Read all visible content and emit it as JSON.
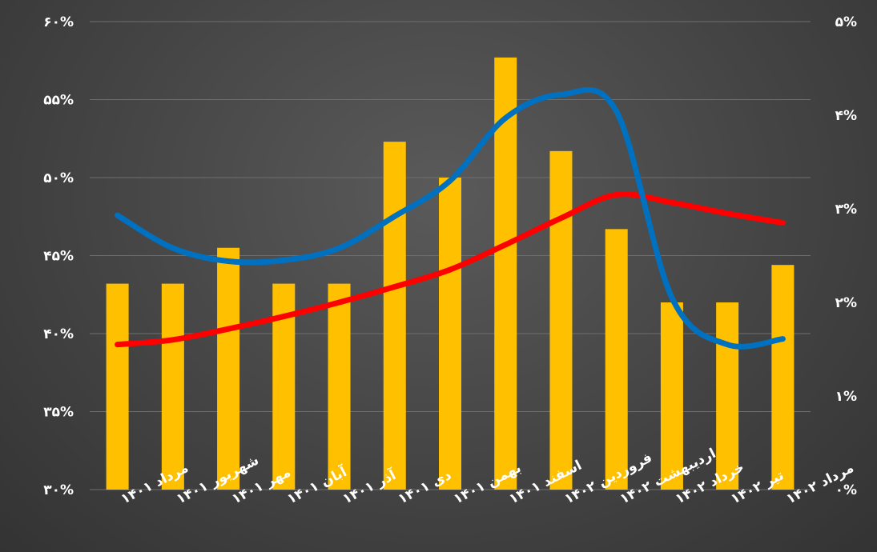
{
  "chart_data": {
    "type": "bar",
    "categories": [
      "مرداد ۱۴۰۱",
      "شهریور ۱۴۰۱",
      "مهر ۱۴۰۱",
      "آبان ۱۴۰۱",
      "آذر ۱۴۰۱",
      "دی ۱۴۰۱",
      "بهمن ۱۴۰۱",
      "اسفند ۱۴۰۱",
      "فروردین ۱۴۰۲",
      "اردیبهشت ۱۴۰۲",
      "خرداد ۱۴۰۲",
      "تیر ۱۴۰۲",
      "مرداد ۱۴۰۲"
    ],
    "left_axis": {
      "ylim": [
        30,
        60
      ],
      "ticks": [
        30,
        35,
        40,
        45,
        50,
        55,
        60
      ],
      "tick_labels": [
        "۳۰%",
        "۳۵%",
        "۴۰%",
        "۴۵%",
        "۵۰%",
        "۵۵%",
        "۶۰%"
      ]
    },
    "right_axis": {
      "ylim": [
        0,
        5
      ],
      "ticks": [
        0,
        1,
        2,
        3,
        4,
        5
      ],
      "tick_labels": [
        "۰%",
        "۱%",
        "۲%",
        "۳%",
        "۴%",
        "۵%"
      ]
    },
    "grid": true,
    "series": [
      {
        "type": "bar",
        "axis": "left",
        "color": "#FFC000",
        "values": [
          43.2,
          43.2,
          45.5,
          43.2,
          43.2,
          52.3,
          50.0,
          57.7,
          51.7,
          46.7,
          42.0,
          42.0,
          44.4
        ]
      },
      {
        "type": "line",
        "axis": "left",
        "color": "#FF0000",
        "values": [
          39.3,
          39.6,
          40.3,
          41.1,
          42.0,
          43.0,
          44.1,
          45.7,
          47.4,
          48.9,
          48.4,
          47.7,
          47.1
        ]
      },
      {
        "type": "line",
        "axis": "right",
        "color": "#0070C0",
        "values": [
          2.93,
          2.58,
          2.44,
          2.45,
          2.58,
          2.92,
          3.3,
          3.97,
          4.22,
          4.04,
          2.05,
          1.55,
          1.61
        ]
      }
    ]
  }
}
